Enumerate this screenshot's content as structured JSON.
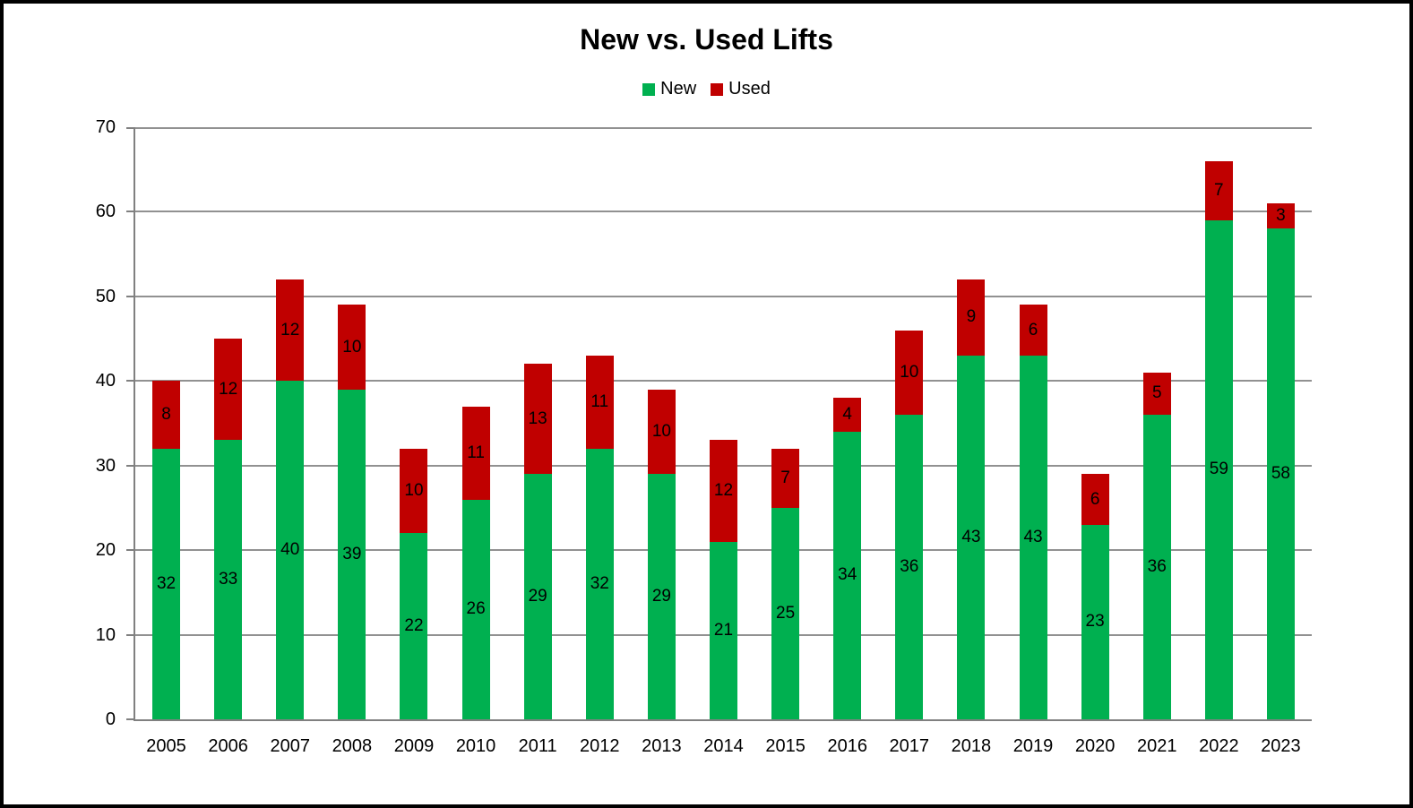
{
  "chart_data": {
    "type": "bar",
    "stacked": true,
    "title": "New vs. Used Lifts",
    "categories": [
      "2005",
      "2006",
      "2007",
      "2008",
      "2009",
      "2010",
      "2011",
      "2012",
      "2013",
      "2014",
      "2015",
      "2016",
      "2017",
      "2018",
      "2019",
      "2020",
      "2021",
      "2022",
      "2023"
    ],
    "series": [
      {
        "name": "New",
        "color": "#00B050",
        "values": [
          32,
          33,
          40,
          39,
          22,
          26,
          29,
          32,
          29,
          21,
          25,
          34,
          36,
          43,
          43,
          23,
          36,
          59,
          58
        ]
      },
      {
        "name": "Used",
        "color": "#C00000",
        "values": [
          8,
          12,
          12,
          10,
          10,
          11,
          13,
          11,
          10,
          12,
          7,
          4,
          10,
          9,
          6,
          6,
          5,
          7,
          3
        ]
      }
    ],
    "data_labels": true,
    "xlabel": "",
    "ylabel": "",
    "ylim": [
      0,
      70
    ],
    "y_ticks": [
      0,
      10,
      20,
      30,
      40,
      50,
      60,
      70
    ],
    "grid": true,
    "legend_position": "top",
    "colors": {
      "grid": "#919191",
      "axis": "#808080",
      "text": "#000000",
      "background": "#FFFFFF",
      "frame": "#000000"
    }
  }
}
